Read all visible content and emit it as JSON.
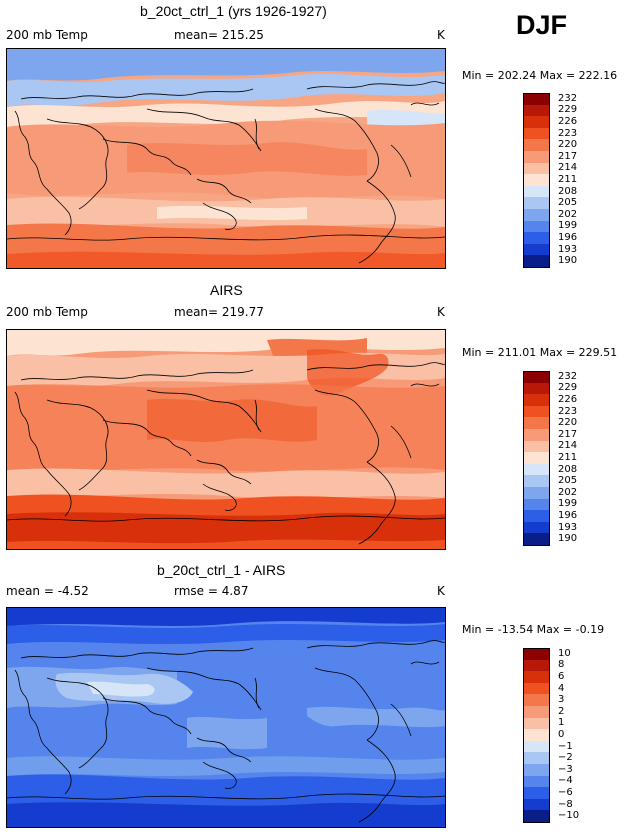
{
  "season": "DJF",
  "panels": [
    {
      "title": "b_20ct_ctrl_1 (yrs 1926-1927)",
      "left_label": "200 mb Temp",
      "center_label": "mean= 215.25",
      "units": "K",
      "minmax": "Min = 202.24 Max = 222.16",
      "levels": [
        "232",
        "229",
        "226",
        "223",
        "220",
        "217",
        "214",
        "211",
        "208",
        "205",
        "202",
        "199",
        "196",
        "193",
        "190"
      ],
      "colors": [
        "#8b0000",
        "#b81808",
        "#d7300b",
        "#f05120",
        "#f4774a",
        "#f79a78",
        "#fac0a5",
        "#fde3d2",
        "#d6e6f8",
        "#a9c7f2",
        "#7ea6ee",
        "#5585ec",
        "#2c5ee8",
        "#143dcf",
        "#0a1e8a"
      ],
      "field_base": "#f5ab88"
    },
    {
      "title": "AIRS",
      "left_label": "200 mb Temp",
      "center_label": "mean= 219.77",
      "units": "K",
      "minmax": "Min = 211.01 Max = 229.51",
      "levels": [
        "232",
        "229",
        "226",
        "223",
        "220",
        "217",
        "214",
        "211",
        "208",
        "205",
        "202",
        "199",
        "196",
        "193",
        "190"
      ],
      "colors": [
        "#8b0000",
        "#b81808",
        "#d7300b",
        "#f05120",
        "#f4774a",
        "#f79a78",
        "#fac0a5",
        "#fde3d2",
        "#d6e6f8",
        "#a9c7f2",
        "#7ea6ee",
        "#5585ec",
        "#2c5ee8",
        "#143dcf",
        "#0a1e8a"
      ],
      "field_base": "#f39070"
    },
    {
      "title": "b_20ct_ctrl_1 - AIRS",
      "left_label": "mean = -4.52",
      "center_label": "rmse = 4.87",
      "units": "K",
      "minmax": "Min = -13.54 Max = -0.19",
      "levels": [
        "10",
        "8",
        "6",
        "4",
        "3",
        "2",
        "1",
        "0",
        "-1",
        "-2",
        "-3",
        "-4",
        "-6",
        "-8",
        "-10"
      ],
      "colors": [
        "#8b0000",
        "#b81808",
        "#d7300b",
        "#f05120",
        "#f4774a",
        "#f79a78",
        "#fac0a5",
        "#fde3d2",
        "#d6e6f8",
        "#a9c7f2",
        "#7ea6ee",
        "#5585ec",
        "#2c5ee8",
        "#143dcf",
        "#0a1e8a"
      ],
      "field_base": "#3a6ae6"
    }
  ]
}
